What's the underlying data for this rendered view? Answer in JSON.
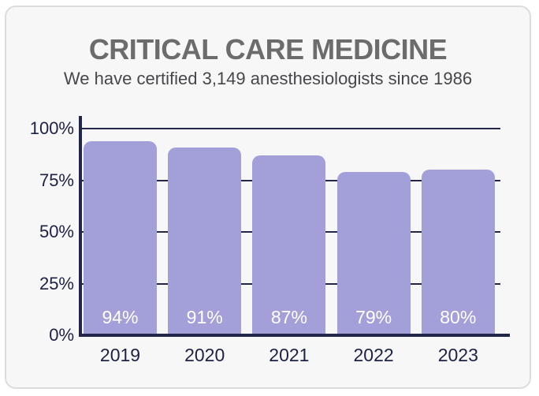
{
  "chart_data": {
    "type": "bar",
    "title": "CRITICAL CARE MEDICINE",
    "subtitle": "We have certified 3,149 anesthesiologists since 1986",
    "categories": [
      "2019",
      "2020",
      "2021",
      "2022",
      "2023"
    ],
    "values": [
      94,
      91,
      87,
      79,
      80
    ],
    "bar_labels": [
      "94%",
      "91%",
      "87%",
      "79%",
      "80%"
    ],
    "xlabel": "",
    "ylabel": "",
    "ylim": [
      0,
      100
    ],
    "y_ticks": [
      {
        "value": 0,
        "label": "0%"
      },
      {
        "value": 25,
        "label": "25%"
      },
      {
        "value": 50,
        "label": "50%"
      },
      {
        "value": 75,
        "label": "75%"
      },
      {
        "value": 100,
        "label": "100%"
      }
    ],
    "grid": true,
    "legend": false,
    "bar_label_position": "inside-bottom",
    "colors": {
      "bar": "#a3a0d9",
      "axis": "#22274a",
      "gridline": "#22274a",
      "bar_label": "#ffffff",
      "tick_label": "#1d2143",
      "title": "#6c6c6c",
      "subtitle": "#47474b",
      "card_background": "#f7f7f8",
      "card_border": "#dcdcdc",
      "page_background": "#ffffff"
    }
  }
}
